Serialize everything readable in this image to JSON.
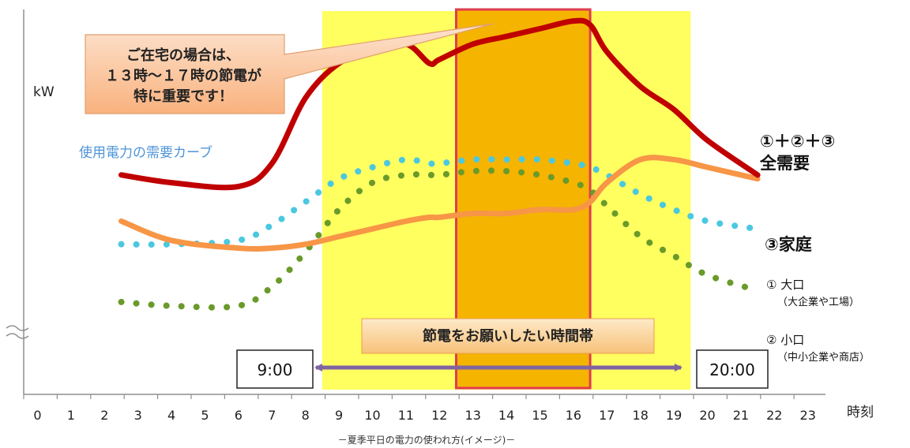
{
  "chart_data": {
    "type": "line",
    "caption": "－夏季平日の電力の使われ方(イメージ)－",
    "ylabel": "kW",
    "xlabel": "時刻",
    "yunits_note": "使用電力の需要カーブ",
    "ylim": [
      0,
      100
    ],
    "xlim": [
      0,
      23
    ],
    "x_ticks": [
      "0",
      "1",
      "2",
      "3",
      "4",
      "5",
      "6",
      "7",
      "8",
      "9",
      "10",
      "11",
      "12",
      "13",
      "14",
      "15",
      "16",
      "17",
      "18",
      "19",
      "20",
      "21",
      "22",
      "23"
    ],
    "x": [
      2.5,
      4,
      6,
      7,
      8,
      9,
      10,
      11,
      11.7,
      12,
      13,
      14,
      15,
      16,
      16.5,
      17,
      18,
      19,
      20,
      21.5
    ],
    "series": [
      {
        "name_line1": "①＋②＋③",
        "name_line2": "全需要",
        "color": "#c00000",
        "style": "solid",
        "values": [
          57,
          55,
          54,
          60,
          77,
          86,
          89,
          91,
          86,
          87,
          91,
          93,
          95,
          97,
          96,
          89,
          80,
          74,
          66,
          57
        ]
      },
      {
        "name": "③家庭",
        "color": "#f79646",
        "style": "solid",
        "values": [
          45,
          40,
          38,
          38,
          39,
          41,
          43,
          45,
          46,
          46,
          47,
          47,
          48,
          48,
          50,
          55,
          61,
          61,
          59,
          56
        ]
      },
      {
        "name_line1": "① 大口",
        "name_line2": "（大企業や工場）",
        "color": "#4bc8e0",
        "style": "dotted",
        "values": [
          39,
          39,
          40,
          44,
          50,
          56,
          59,
          61,
          60,
          60,
          61,
          61,
          61,
          60,
          59,
          57,
          52,
          48,
          45,
          43
        ]
      },
      {
        "name_line1": "② 小口",
        "name_line2": "（中小企業や商店）",
        "color": "#6a9a2a",
        "style": "dotted",
        "values": [
          24,
          23,
          23,
          28,
          37,
          48,
          55,
          57,
          57,
          57,
          58,
          58,
          57,
          55,
          53,
          49,
          41,
          36,
          31,
          27
        ]
      }
    ],
    "highlight_wide": {
      "from": 8.5,
      "to": 19.5,
      "color": "#ffff44"
    },
    "highlight_peak": {
      "from": 12.5,
      "to": 16.5,
      "color": "#f5b400",
      "border": "#e03c50"
    },
    "callout": {
      "line1": "ご在宅の場合は、",
      "line2": "１３時～１７時の節電が",
      "line3": "特に重要です！"
    },
    "band_label": "節電をお願いしたい時間帯",
    "range_start_label": "9:00",
    "range_end_label": "20:00"
  }
}
